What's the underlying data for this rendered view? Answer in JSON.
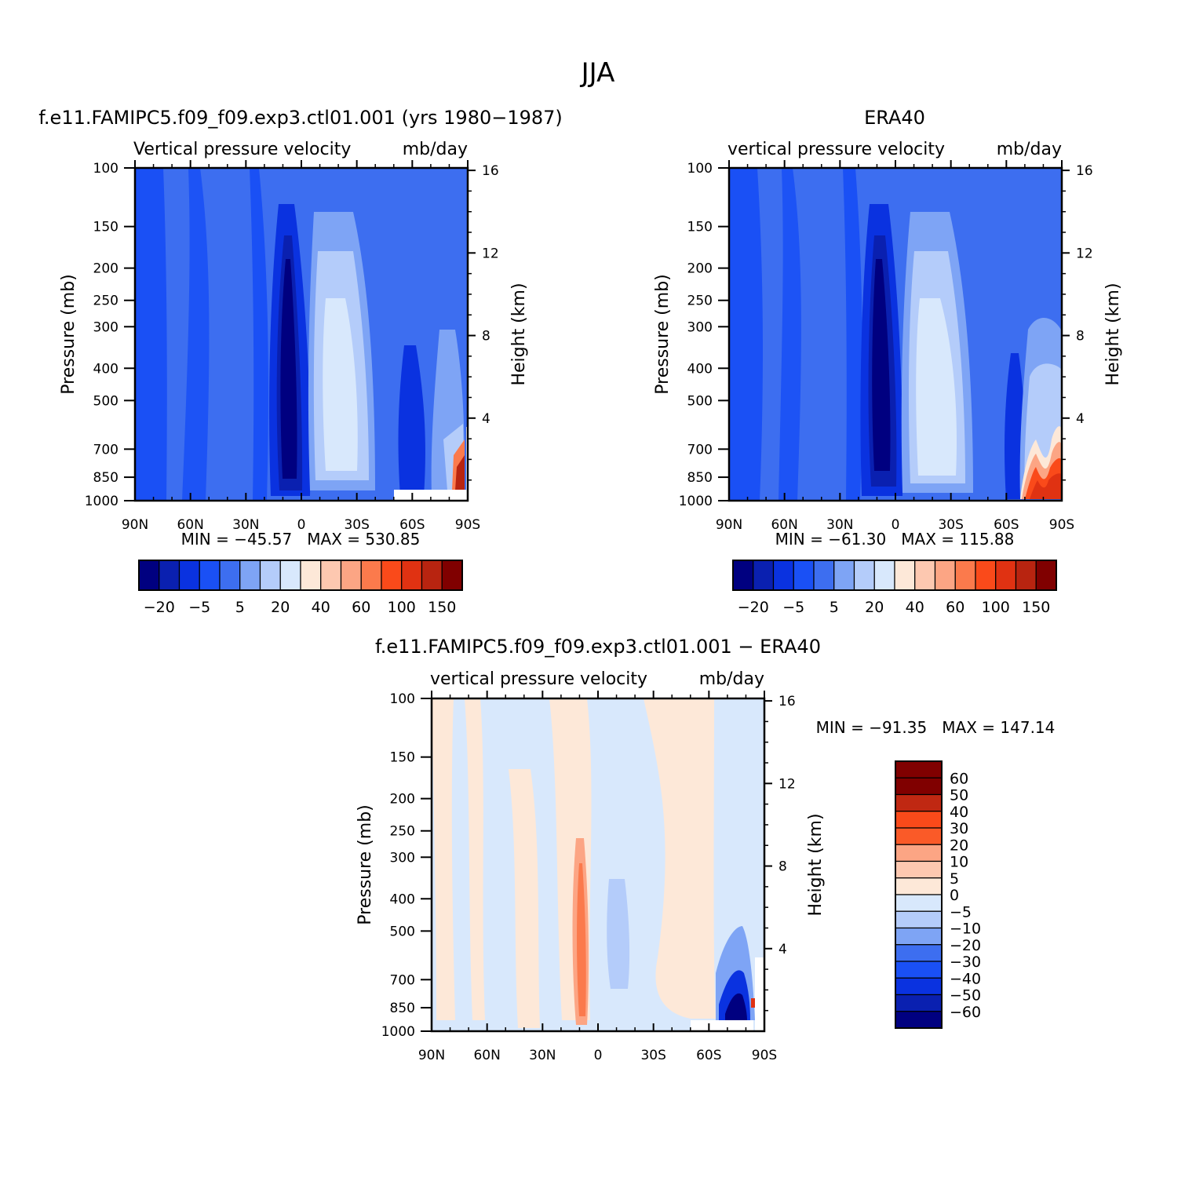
{
  "page_title": "JJA",
  "colors": {
    "abs_levels": [
      "#000080",
      "#0a20b0",
      "#0a32e0",
      "#1a50f5",
      "#3d6ef0",
      "#7ea4f5",
      "#b4ccfa",
      "#d8e8fc",
      "#fde8d8",
      "#fdc8b0",
      "#fca584",
      "#fb7a4c",
      "#fa4a1a",
      "#e03212",
      "#b82410",
      "#800000"
    ],
    "diff_levels": [
      "#000080",
      "#0a20b0",
      "#0a32e0",
      "#1a50f5",
      "#3d6ef0",
      "#7ea4f5",
      "#b4ccfa",
      "#d8e8fc",
      "#fde8d8",
      "#fdc8b0",
      "#fca584",
      "#fa5a28",
      "#fa4a1a",
      "#c02812",
      "#800000"
    ]
  },
  "chart_data": [
    {
      "type": "heatmap",
      "title": "f.e11.FAMIPC5.f09_f09.exp3.ctl01.001 (yrs 1980-1987)",
      "subtitle_left": "Vertical pressure velocity",
      "subtitle_right": "mb/day",
      "ylabel": "Pressure (mb)",
      "ylabel_right": "Height (km)",
      "x_ticks": [
        "90N",
        "60N",
        "30N",
        "0",
        "30S",
        "60S",
        "90S"
      ],
      "x_values": [
        90,
        60,
        30,
        0,
        -30,
        -60,
        -90
      ],
      "y_ticks": [
        "100",
        "150",
        "200",
        "250",
        "300",
        "400",
        "500",
        "700",
        "850",
        "1000"
      ],
      "y_values": [
        100,
        150,
        200,
        250,
        300,
        400,
        500,
        700,
        850,
        1000
      ],
      "y_right_ticks": [
        "16",
        "12",
        "8",
        "4"
      ],
      "y_right_values": [
        16,
        12,
        8,
        4
      ],
      "xlim": [
        90,
        -90
      ],
      "ylim": [
        1000,
        100
      ],
      "y_scale": "log",
      "min_max_text": "MIN = -45.57   MAX = 530.85",
      "colorbar_labels": [
        "-20",
        "-5",
        "5",
        "20",
        "40",
        "60",
        "100",
        "150"
      ],
      "colorbar_orientation": "horizontal"
    },
    {
      "type": "heatmap",
      "title": "ERA40",
      "subtitle_left": "vertical pressure velocity",
      "subtitle_right": "mb/day",
      "ylabel": "Pressure (mb)",
      "ylabel_right": "Height (km)",
      "x_ticks": [
        "90N",
        "60N",
        "30N",
        "0",
        "30S",
        "60S",
        "90S"
      ],
      "x_values": [
        90,
        60,
        30,
        0,
        -30,
        -60,
        -90
      ],
      "y_ticks": [
        "100",
        "150",
        "200",
        "250",
        "300",
        "400",
        "500",
        "700",
        "850",
        "1000"
      ],
      "y_values": [
        100,
        150,
        200,
        250,
        300,
        400,
        500,
        700,
        850,
        1000
      ],
      "y_right_ticks": [
        "16",
        "12",
        "8",
        "4"
      ],
      "y_right_values": [
        16,
        12,
        8,
        4
      ],
      "xlim": [
        90,
        -90
      ],
      "ylim": [
        1000,
        100
      ],
      "y_scale": "log",
      "min_max_text": "MIN = -61.30   MAX = 115.88",
      "colorbar_labels": [
        "-20",
        "-5",
        "5",
        "20",
        "40",
        "60",
        "100",
        "150"
      ],
      "colorbar_orientation": "horizontal"
    },
    {
      "type": "heatmap",
      "title": "f.e11.FAMIPC5.f09_f09.exp3.ctl01.001 - ERA40",
      "subtitle_left": "vertical pressure velocity",
      "subtitle_right": "mb/day",
      "ylabel": "Pressure (mb)",
      "ylabel_right": "Height (km)",
      "x_ticks": [
        "90N",
        "60N",
        "30N",
        "0",
        "30S",
        "60S",
        "90S"
      ],
      "x_values": [
        90,
        60,
        30,
        0,
        -30,
        -60,
        -90
      ],
      "y_ticks": [
        "100",
        "150",
        "200",
        "250",
        "300",
        "400",
        "500",
        "700",
        "850",
        "1000"
      ],
      "y_values": [
        100,
        150,
        200,
        250,
        300,
        400,
        500,
        700,
        850,
        1000
      ],
      "y_right_ticks": [
        "16",
        "12",
        "8",
        "4"
      ],
      "y_right_values": [
        16,
        12,
        8,
        4
      ],
      "xlim": [
        90,
        -90
      ],
      "ylim": [
        1000,
        100
      ],
      "y_scale": "log",
      "min_max_text": "MIN = -91.35   MAX = 147.14",
      "colorbar_labels": [
        "60",
        "50",
        "40",
        "30",
        "20",
        "10",
        "5",
        "0",
        "-5",
        "-10",
        "-20",
        "-30",
        "-40",
        "-50",
        "-60"
      ],
      "colorbar_orientation": "vertical"
    }
  ]
}
